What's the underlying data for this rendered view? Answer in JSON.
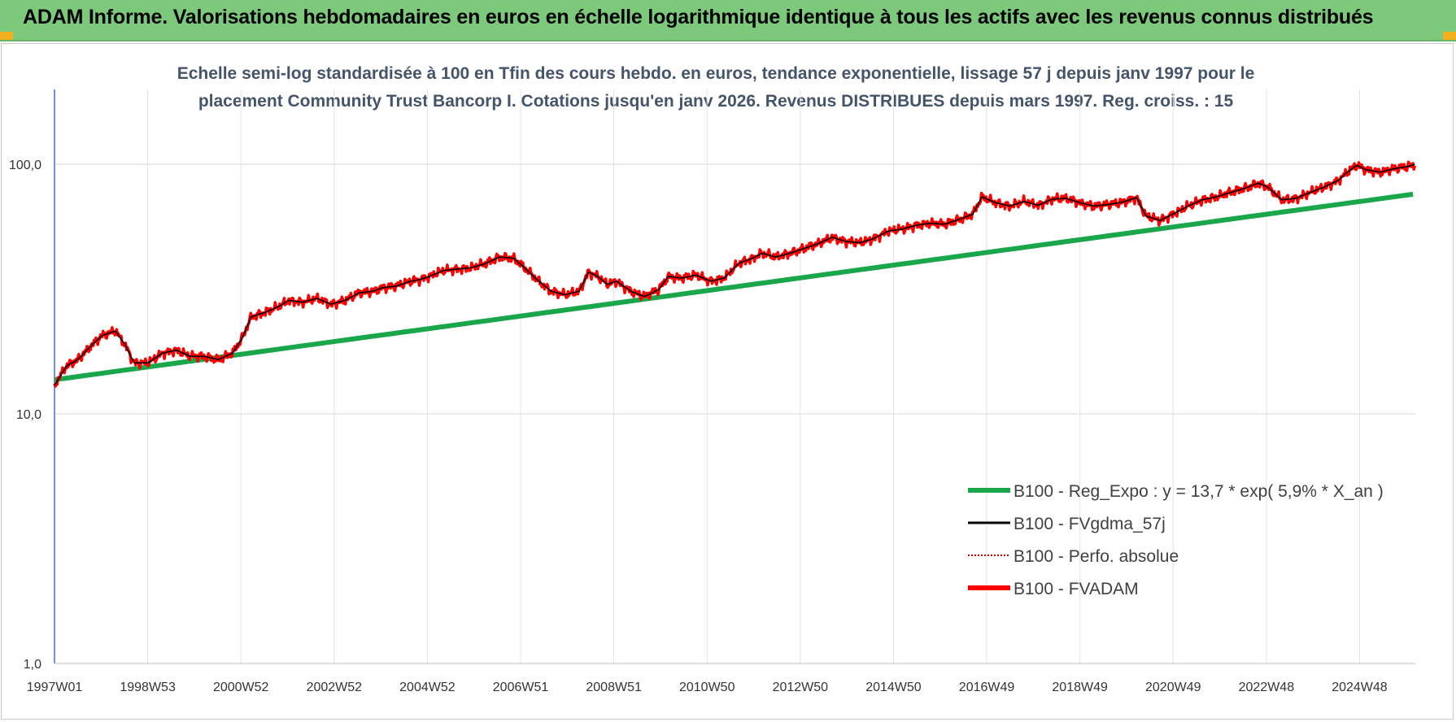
{
  "header": {
    "title": "ADAM Informe. Valorisations hebdomadaires en euros en échelle logarithmique identique à tous les actifs avec les revenus connus distribués"
  },
  "colors": {
    "header_bg": "#7cc97c",
    "regression": "#1aa64b",
    "smoothed": "#000000",
    "absolute": "#c00000",
    "fvadam": "#ff0000",
    "title_text": "#44546a"
  },
  "chart_data": {
    "type": "line",
    "title_line1": "Echelle semi-log standardisée à 100 en Tfin des cours hebdo. en euros, tendance exponentielle, lissage 57 j depuis janv 1997 pour le",
    "title_line2": "placement Community Trust Bancorp I. Cotations jusqu'en janv 2026. Revenus DISTRIBUES depuis mars 1997. Reg. croiss. : 15",
    "y_scale": "log",
    "ylim": [
      1,
      100
    ],
    "y_ticks": [
      "1,0",
      "10,0",
      "100,0"
    ],
    "x_range_years": [
      1997.0,
      2026.05
    ],
    "x_tick_labels": [
      "1997W01",
      "1998W53",
      "2000W52",
      "2002W52",
      "2004W52",
      "2006W51",
      "2008W51",
      "2010W50",
      "2012W50",
      "2014W50",
      "2016W49",
      "2018W49",
      "2020W49",
      "2022W48",
      "2024W48"
    ],
    "grid": true,
    "legend_position": "bottom-right",
    "series": [
      {
        "name": "B100 - Reg_Expo : y = 13,7 * exp( 5,9% *  X_an )",
        "style": "regression",
        "a": 13.7,
        "rate": 0.059
      },
      {
        "name": "B100 - FVgdma_57j",
        "style": "smoothed"
      },
      {
        "name": "B100 - Perfo. absolue",
        "style": "dotted"
      },
      {
        "name": "B100 - FVADAM",
        "style": "main",
        "points": [
          [
            1997.0,
            13.0
          ],
          [
            1997.25,
            15.5
          ],
          [
            1997.5,
            16.5
          ],
          [
            1997.75,
            18.5
          ],
          [
            1998.0,
            20.5
          ],
          [
            1998.3,
            21.5
          ],
          [
            1998.5,
            19.0
          ],
          [
            1998.7,
            16.0
          ],
          [
            1999.0,
            16.0
          ],
          [
            1999.3,
            17.5
          ],
          [
            1999.6,
            18.0
          ],
          [
            1999.9,
            17.0
          ],
          [
            2000.2,
            17.0
          ],
          [
            2000.5,
            16.5
          ],
          [
            2000.8,
            17.5
          ],
          [
            2001.0,
            20.0
          ],
          [
            2001.2,
            24.5
          ],
          [
            2001.5,
            25.5
          ],
          [
            2001.8,
            27.0
          ],
          [
            2002.0,
            28.5
          ],
          [
            2002.3,
            28.0
          ],
          [
            2002.6,
            29.0
          ],
          [
            2002.9,
            27.5
          ],
          [
            2003.2,
            28.5
          ],
          [
            2003.5,
            30.5
          ],
          [
            2003.8,
            31.0
          ],
          [
            2004.0,
            32.0
          ],
          [
            2004.3,
            32.5
          ],
          [
            2004.6,
            34.0
          ],
          [
            2004.8,
            34.5
          ],
          [
            2005.0,
            35.5
          ],
          [
            2005.3,
            37.5
          ],
          [
            2005.6,
            38.0
          ],
          [
            2005.9,
            38.5
          ],
          [
            2006.2,
            40.0
          ],
          [
            2006.5,
            42.5
          ],
          [
            2006.8,
            42.0
          ],
          [
            2007.0,
            39.0
          ],
          [
            2007.3,
            34.5
          ],
          [
            2007.6,
            31.0
          ],
          [
            2007.9,
            30.0
          ],
          [
            2008.2,
            31.0
          ],
          [
            2008.4,
            37.0
          ],
          [
            2008.6,
            35.5
          ],
          [
            2008.8,
            33.0
          ],
          [
            2009.0,
            34.0
          ],
          [
            2009.3,
            31.0
          ],
          [
            2009.6,
            29.5
          ],
          [
            2009.9,
            31.5
          ],
          [
            2010.1,
            35.5
          ],
          [
            2010.4,
            35.0
          ],
          [
            2010.7,
            36.0
          ],
          [
            2011.0,
            34.0
          ],
          [
            2011.3,
            35.0
          ],
          [
            2011.6,
            40.0
          ],
          [
            2011.9,
            42.0
          ],
          [
            2012.1,
            44.0
          ],
          [
            2012.4,
            42.5
          ],
          [
            2012.7,
            44.0
          ],
          [
            2013.0,
            46.0
          ],
          [
            2013.3,
            48.0
          ],
          [
            2013.6,
            51.0
          ],
          [
            2013.9,
            49.0
          ],
          [
            2014.2,
            48.5
          ],
          [
            2014.5,
            50.5
          ],
          [
            2014.8,
            54.0
          ],
          [
            2015.1,
            55.0
          ],
          [
            2015.4,
            57.0
          ],
          [
            2015.7,
            58.0
          ],
          [
            2016.0,
            57.5
          ],
          [
            2016.3,
            60.0
          ],
          [
            2016.6,
            63.0
          ],
          [
            2016.8,
            74.0
          ],
          [
            2017.1,
            70.0
          ],
          [
            2017.4,
            68.0
          ],
          [
            2017.7,
            71.0
          ],
          [
            2018.0,
            68.5
          ],
          [
            2018.3,
            72.5
          ],
          [
            2018.6,
            73.0
          ],
          [
            2018.9,
            70.0
          ],
          [
            2019.2,
            68.0
          ],
          [
            2019.5,
            69.0
          ],
          [
            2019.8,
            70.5
          ],
          [
            2020.1,
            73.5
          ],
          [
            2020.3,
            62.0
          ],
          [
            2020.6,
            59.5
          ],
          [
            2020.9,
            63.5
          ],
          [
            2021.2,
            68.0
          ],
          [
            2021.5,
            72.0
          ],
          [
            2021.8,
            74.0
          ],
          [
            2022.1,
            77.0
          ],
          [
            2022.4,
            80.0
          ],
          [
            2022.7,
            84.0
          ],
          [
            2022.9,
            81.0
          ],
          [
            2023.2,
            72.0
          ],
          [
            2023.5,
            73.0
          ],
          [
            2023.8,
            77.0
          ],
          [
            2024.1,
            81.0
          ],
          [
            2024.4,
            86.0
          ],
          [
            2024.6,
            93.0
          ],
          [
            2024.8,
            99.0
          ],
          [
            2025.0,
            95.0
          ],
          [
            2025.3,
            93.0
          ],
          [
            2025.6,
            96.0
          ],
          [
            2025.9,
            98.0
          ],
          [
            2026.05,
            100.0
          ]
        ]
      }
    ]
  }
}
